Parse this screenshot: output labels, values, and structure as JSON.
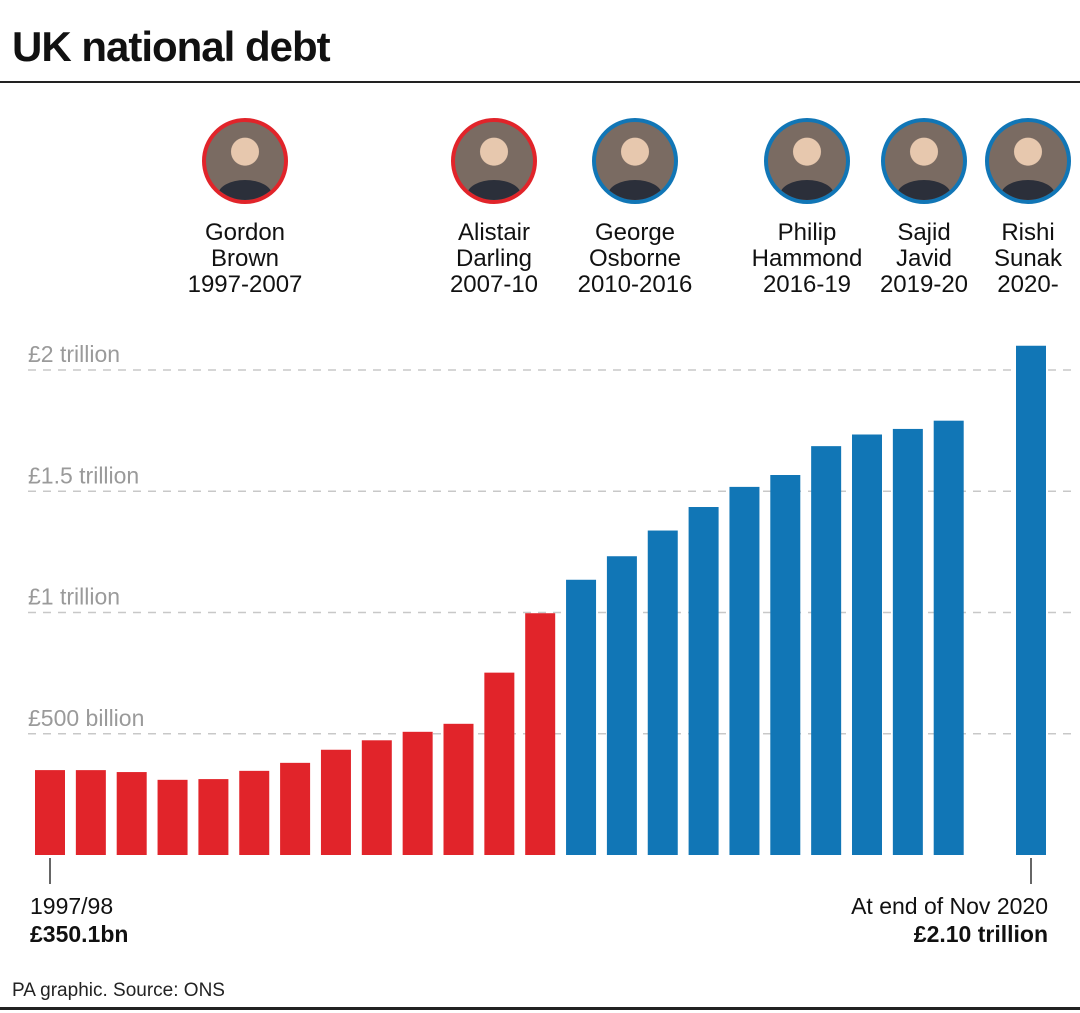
{
  "title": "UK national debt",
  "source": "PA graphic. Source: ONS",
  "colors": {
    "brown_era": "#e1242a",
    "conservative_era": "#1176b6",
    "grid": "#c8c8c8",
    "tick_label": "#9a9a9a"
  },
  "chancellors": [
    {
      "first": "Gordon",
      "last": "Brown",
      "years": "1997-2007",
      "ring": "red"
    },
    {
      "first": "Alistair",
      "last": "Darling",
      "years": "2007-10",
      "ring": "red"
    },
    {
      "first": "George",
      "last": "Osborne",
      "years": "2010-2016",
      "ring": "blue"
    },
    {
      "first": "Philip",
      "last": "Hammond",
      "years": "2016-19",
      "ring": "blue"
    },
    {
      "first": "Sajid",
      "last": "Javid",
      "years": "2019-20",
      "ring": "blue"
    },
    {
      "first": "Rishi",
      "last": "Sunak",
      "years": "2020-",
      "ring": "blue"
    }
  ],
  "chart_data": {
    "type": "bar",
    "title": "UK national debt",
    "y_unit": "£ billion",
    "ylim": [
      0,
      2000
    ],
    "yticks": [
      {
        "value": 500,
        "label": "£500 billion"
      },
      {
        "value": 1000,
        "label": "£1 trillion"
      },
      {
        "value": 1500,
        "label": "£1.5 trillion"
      },
      {
        "value": 2000,
        "label": "£2 trillion"
      }
    ],
    "grid": true,
    "values": [
      350.1,
      350,
      342,
      310,
      313,
      347,
      380,
      434,
      473,
      508,
      541,
      752,
      997,
      1135,
      1232,
      1338,
      1435,
      1518,
      1567,
      1686,
      1734,
      1757,
      1791,
      2100
    ],
    "colors": [
      "red",
      "red",
      "red",
      "red",
      "red",
      "red",
      "red",
      "red",
      "red",
      "red",
      "red",
      "red",
      "red",
      "blue",
      "blue",
      "blue",
      "blue",
      "blue",
      "blue",
      "blue",
      "blue",
      "blue",
      "blue",
      "blue"
    ],
    "annotations": {
      "start": {
        "line1": "1997/98",
        "line2": "£350.1bn"
      },
      "end": {
        "line1": "At end of Nov 2020",
        "line2": "£2.10 trillion"
      }
    }
  }
}
